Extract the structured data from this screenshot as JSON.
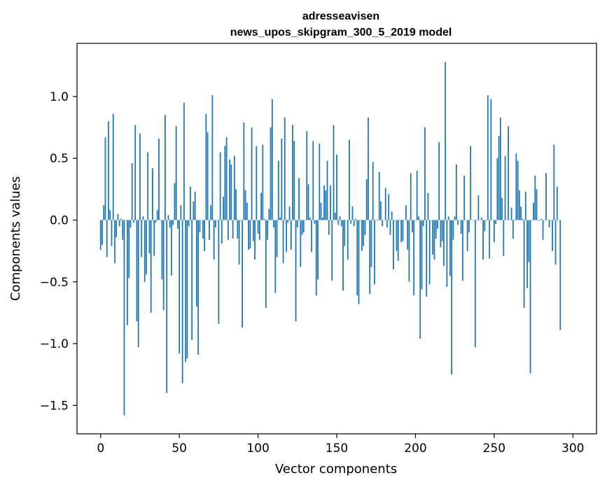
{
  "chart_data": {
    "type": "bar",
    "title_lines": [
      "adresseavisen",
      "news_upos_skipgram_300_5_2019 model"
    ],
    "xlabel": "Vector components",
    "ylabel": "Components values",
    "xlim": [
      -15,
      315
    ],
    "ylim": [
      -1.73,
      1.43
    ],
    "xticks": [
      0,
      50,
      100,
      150,
      200,
      250,
      300
    ],
    "xtick_labels": [
      "0",
      "50",
      "100",
      "150",
      "200",
      "250",
      "300"
    ],
    "yticks": [
      -1.5,
      -1.0,
      -0.5,
      0.0,
      0.5,
      1.0
    ],
    "ytick_labels": [
      "−1.5",
      "−1.0",
      "−0.5",
      "0.0",
      "0.5",
      "1.0"
    ],
    "grid": false,
    "bar_color": "#1f77b4",
    "x_start": 0,
    "values": [
      -0.24,
      -0.2,
      0.12,
      0.67,
      -0.3,
      0.8,
      0.08,
      -0.21,
      0.86,
      -0.35,
      -0.14,
      0.05,
      -0.05,
      0.01,
      -0.16,
      -1.58,
      0.0,
      -0.85,
      -0.47,
      -0.06,
      0.46,
      -0.02,
      0.77,
      -0.82,
      -1.03,
      0.7,
      -0.3,
      0.03,
      -0.5,
      -0.44,
      0.55,
      -0.27,
      -0.75,
      0.42,
      -0.29,
      -0.02,
      0.08,
      0.66,
      0.0,
      -0.48,
      -0.73,
      0.85,
      -1.4,
      0.04,
      -0.06,
      -0.45,
      -0.04,
      0.3,
      0.76,
      -0.07,
      -1.08,
      0.12,
      -1.32,
      0.95,
      -1.15,
      -1.12,
      -0.05,
      0.27,
      -0.97,
      0.15,
      0.23,
      -0.7,
      -1.09,
      -0.1,
      0.0,
      -0.15,
      -0.25,
      0.86,
      0.71,
      -0.16,
      0.12,
      1.01,
      -0.32,
      -0.06,
      0.0,
      -0.84,
      0.55,
      -0.19,
      0.19,
      0.6,
      0.67,
      -0.16,
      0.49,
      0.45,
      -0.15,
      0.52,
      0.25,
      -0.15,
      -0.36,
      0.0,
      -0.87,
      0.79,
      0.24,
      0.14,
      -0.24,
      -0.23,
      0.75,
      -0.17,
      -0.32,
      0.6,
      -0.11,
      -0.16,
      0.22,
      0.61,
      0.01,
      -0.71,
      -0.16,
      0.09,
      0.75,
      0.98,
      -0.06,
      -0.59,
      -0.3,
      0.48,
      0.02,
      0.66,
      -0.35,
      0.83,
      -0.26,
      -0.02,
      0.11,
      -0.24,
      0.77,
      0.64,
      -0.82,
      -0.06,
      0.34,
      -0.38,
      -0.12,
      -0.1,
      0.0,
      0.72,
      0.29,
      0.02,
      -0.26,
      0.64,
      -0.03,
      -0.61,
      -0.48,
      0.62,
      0.14,
      0.02,
      0.28,
      0.24,
      0.48,
      -0.12,
      0.28,
      -0.49,
      0.77,
      0.06,
      0.53,
      -0.04,
      0.03,
      -0.05,
      -0.57,
      -0.21,
      0.0,
      -0.32,
      0.65,
      -0.03,
      0.11,
      -0.05,
      0.01,
      -0.61,
      -0.68,
      0.0,
      -0.25,
      -0.21,
      -0.12,
      0.33,
      0.83,
      -0.6,
      -0.38,
      0.47,
      -0.52,
      0.0,
      0.0,
      0.39,
      0.15,
      -0.05,
      0.0,
      0.26,
      -0.06,
      0.21,
      -0.12,
      0.07,
      -0.4,
      0.0,
      -0.25,
      -0.33,
      0.0,
      -0.18,
      -0.17,
      0.0,
      0.12,
      -0.24,
      -0.5,
      0.38,
      -0.1,
      -0.61,
      0.0,
      0.4,
      0.03,
      -0.96,
      -0.56,
      -0.05,
      0.75,
      -0.62,
      0.22,
      -0.52,
      0.0,
      -0.28,
      -0.32,
      -0.15,
      -0.07,
      0.63,
      -0.22,
      -0.17,
      -0.37,
      1.28,
      -0.54,
      0.03,
      -0.45,
      -1.25,
      -0.16,
      0.03,
      0.45,
      -0.04,
      0.0,
      -0.11,
      -0.49,
      0.36,
      0.0,
      -0.25,
      -0.1,
      0.6,
      0.0,
      0.0,
      -1.03,
      0.0,
      0.2,
      0.0,
      0.02,
      -0.32,
      -0.09,
      0.0,
      1.01,
      -0.31,
      0.98,
      0.0,
      -0.18,
      -0.03,
      0.5,
      0.68,
      0.83,
      0.18,
      -0.29,
      0.52,
      0.0,
      0.76,
      0.0,
      0.1,
      -0.15,
      0.0,
      0.54,
      0.48,
      0.24,
      0.11,
      0.01,
      -0.71,
      0.23,
      -0.55,
      -0.34,
      -1.24,
      0.0,
      0.14,
      0.36,
      0.25,
      0.0,
      0.0,
      0.01,
      -0.16,
      0.0,
      0.38,
      0.0,
      -0.06,
      0.0,
      -0.25,
      0.61,
      -0.36,
      0.27,
      0.0,
      -0.89
    ],
    "values_note": ""
  }
}
